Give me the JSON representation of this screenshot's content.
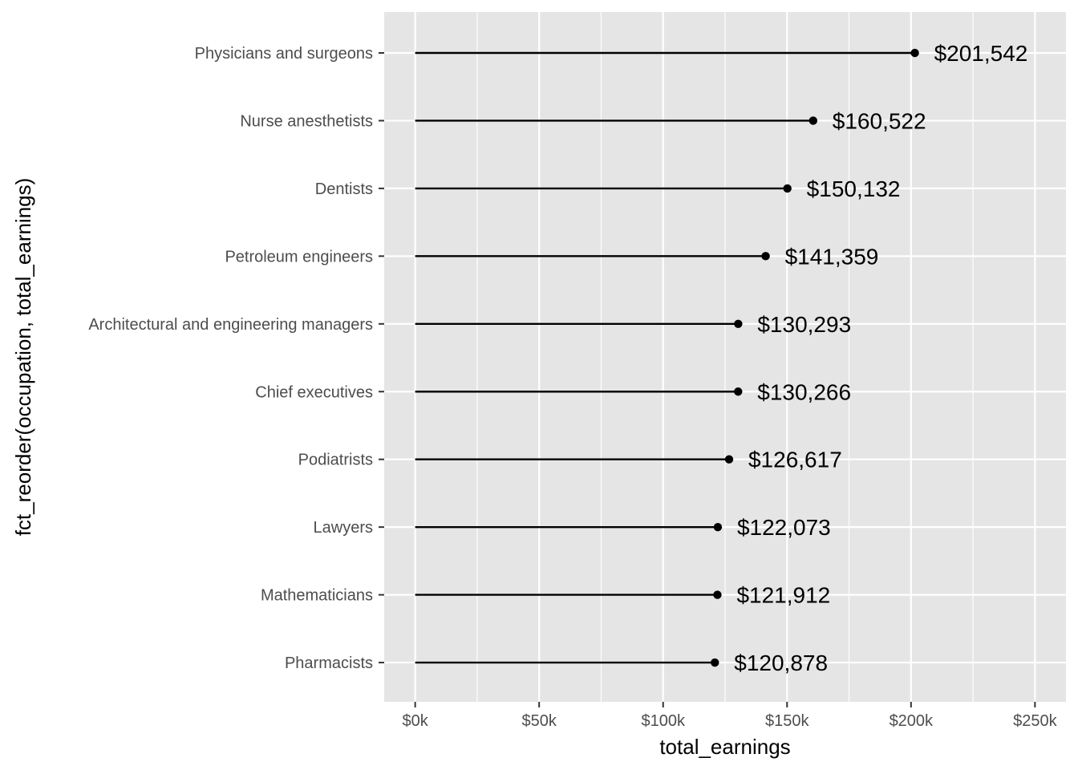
{
  "chart_data": {
    "type": "lollipop",
    "orientation": "horizontal",
    "xlabel": "total_earnings",
    "ylabel": "fct_reorder(occupation, total_earnings)",
    "xlim": [
      -12500,
      262500
    ],
    "x_ticks": [
      0,
      50000,
      100000,
      150000,
      200000,
      250000
    ],
    "x_tick_labels": [
      "$0k",
      "$50k",
      "$100k",
      "$150k",
      "$200k",
      "$250k"
    ],
    "grid": true,
    "legend": "none",
    "categories": [
      "Physicians and surgeons",
      "Nurse anesthetists",
      "Dentists",
      "Petroleum engineers",
      "Architectural and engineering managers",
      "Chief executives",
      "Podiatrists",
      "Lawyers",
      "Mathematicians",
      "Pharmacists"
    ],
    "values": [
      201542,
      160522,
      150132,
      141359,
      130293,
      130266,
      126617,
      122073,
      121912,
      120878
    ],
    "value_labels": [
      "$201,542",
      "$160,522",
      "$150,132",
      "$141,359",
      "$130,293",
      "$130,266",
      "$126,617",
      "$122,073",
      "$121,912",
      "$120,878"
    ]
  },
  "colors": {
    "panel_background": "#e5e5e5",
    "grid_line": "#ffffff",
    "segment": "#000000",
    "point": "#000000",
    "tick": "#333333"
  }
}
